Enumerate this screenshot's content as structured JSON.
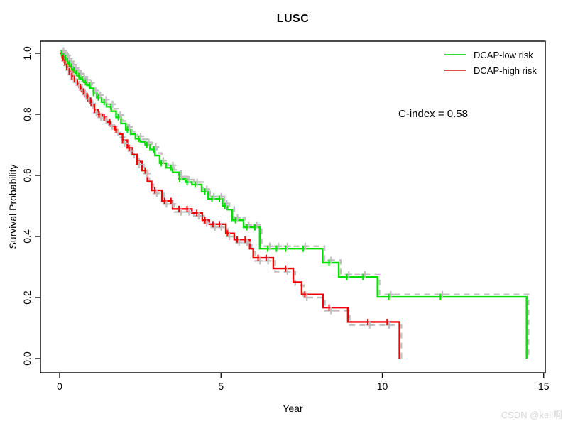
{
  "title": "LUSC",
  "annotation_text": "C-index = 0.58",
  "watermark_text": "CSDN @keil啊",
  "chart_data": {
    "type": "line",
    "subtype": "kaplan-meier-step",
    "title": "LUSC",
    "xlabel": "Year",
    "ylabel": "Survival Probability",
    "xlim": [
      0,
      15
    ],
    "ylim": [
      0.0,
      1.0
    ],
    "grid": false,
    "x_ticks": [
      {
        "v": 0,
        "label": "0"
      },
      {
        "v": 5,
        "label": "5"
      },
      {
        "v": 10,
        "label": "10"
      },
      {
        "v": 15,
        "label": "15"
      }
    ],
    "y_ticks": [
      {
        "v": 0.0,
        "label": "0.0"
      },
      {
        "v": 0.2,
        "label": "0.2"
      },
      {
        "v": 0.4,
        "label": "0.4"
      },
      {
        "v": 0.6,
        "label": "0.6"
      },
      {
        "v": 0.8,
        "label": "0.8"
      },
      {
        "v": 1.0,
        "label": "1.0"
      }
    ],
    "legend": {
      "position": "top-right",
      "frame": false,
      "entries": [
        {
          "label": "DCAP-low risk",
          "color": "#33dd33"
        },
        {
          "label": "DCAP-high risk",
          "color": "#e05050"
        }
      ]
    },
    "annotation": {
      "text": "C-index = 0.58",
      "x": 11.5,
      "y": 0.8
    },
    "colors": {
      "low_risk": "#00e000",
      "high_risk": "#f00000",
      "reference_dashed": "#bfbfbf"
    },
    "series": [
      {
        "name": "DCAP-low risk",
        "color": "#00e000",
        "style": "solid",
        "start": [
          0,
          1.0
        ],
        "steps": [
          [
            0.08,
            0.99
          ],
          [
            0.15,
            0.985
          ],
          [
            0.2,
            0.975
          ],
          [
            0.28,
            0.965
          ],
          [
            0.35,
            0.955
          ],
          [
            0.42,
            0.945
          ],
          [
            0.5,
            0.935
          ],
          [
            0.58,
            0.925
          ],
          [
            0.65,
            0.915
          ],
          [
            0.75,
            0.905
          ],
          [
            0.85,
            0.895
          ],
          [
            0.95,
            0.885
          ],
          [
            1.05,
            0.87
          ],
          [
            1.15,
            0.855
          ],
          [
            1.3,
            0.84
          ],
          [
            1.45,
            0.825
          ],
          [
            1.6,
            0.81
          ],
          [
            1.75,
            0.79
          ],
          [
            1.9,
            0.77
          ],
          [
            2.05,
            0.75
          ],
          [
            2.2,
            0.735
          ],
          [
            2.35,
            0.72
          ],
          [
            2.5,
            0.71
          ],
          [
            2.65,
            0.7
          ],
          [
            2.8,
            0.685
          ],
          [
            2.95,
            0.665
          ],
          [
            3.1,
            0.64
          ],
          [
            3.3,
            0.625
          ],
          [
            3.5,
            0.61
          ],
          [
            3.7,
            0.588
          ],
          [
            3.9,
            0.578
          ],
          [
            4.1,
            0.57
          ],
          [
            4.4,
            0.547
          ],
          [
            4.6,
            0.523
          ],
          [
            5.05,
            0.5
          ],
          [
            5.2,
            0.488
          ],
          [
            5.35,
            0.453
          ],
          [
            5.7,
            0.43
          ],
          [
            6.2,
            0.36
          ],
          [
            8.15,
            0.314
          ],
          [
            8.65,
            0.267
          ],
          [
            9.85,
            0.202
          ],
          [
            14.47,
            0.0
          ]
        ],
        "censor_times": [
          0.06,
          0.12,
          0.18,
          0.24,
          0.3,
          0.37,
          0.44,
          0.52,
          0.6,
          0.7,
          0.8,
          0.92,
          1.05,
          1.2,
          1.38,
          1.58,
          1.82,
          2.1,
          2.45,
          2.7,
          2.92,
          3.15,
          3.45,
          3.72,
          3.95,
          4.2,
          4.5,
          4.72,
          4.95,
          5.12,
          5.45,
          5.8,
          6.05,
          6.45,
          6.72,
          7.0,
          7.55,
          8.35,
          8.9,
          9.4,
          10.2,
          11.8
        ]
      },
      {
        "name": "DCAP-high risk",
        "color": "#f00000",
        "style": "solid",
        "start": [
          0,
          1.0
        ],
        "steps": [
          [
            0.08,
            0.985
          ],
          [
            0.15,
            0.97
          ],
          [
            0.22,
            0.955
          ],
          [
            0.3,
            0.94
          ],
          [
            0.38,
            0.925
          ],
          [
            0.45,
            0.915
          ],
          [
            0.52,
            0.905
          ],
          [
            0.6,
            0.89
          ],
          [
            0.68,
            0.875
          ],
          [
            0.78,
            0.86
          ],
          [
            0.88,
            0.845
          ],
          [
            0.98,
            0.83
          ],
          [
            1.08,
            0.815
          ],
          [
            1.2,
            0.8
          ],
          [
            1.32,
            0.79
          ],
          [
            1.45,
            0.775
          ],
          [
            1.58,
            0.762
          ],
          [
            1.7,
            0.75
          ],
          [
            1.82,
            0.735
          ],
          [
            1.95,
            0.715
          ],
          [
            2.1,
            0.69
          ],
          [
            2.25,
            0.668
          ],
          [
            2.4,
            0.645
          ],
          [
            2.55,
            0.616
          ],
          [
            2.72,
            0.58
          ],
          [
            2.85,
            0.551
          ],
          [
            3.17,
            0.516
          ],
          [
            3.5,
            0.49
          ],
          [
            4.1,
            0.477
          ],
          [
            4.42,
            0.453
          ],
          [
            4.64,
            0.44
          ],
          [
            5.15,
            0.41
          ],
          [
            5.41,
            0.39
          ],
          [
            5.89,
            0.36
          ],
          [
            6.0,
            0.33
          ],
          [
            6.62,
            0.295
          ],
          [
            7.24,
            0.25
          ],
          [
            7.5,
            0.21
          ],
          [
            8.16,
            0.167
          ],
          [
            8.93,
            0.12
          ],
          [
            10.53,
            0.0
          ]
        ],
        "censor_times": [
          0.1,
          0.16,
          0.22,
          0.3,
          0.38,
          0.46,
          0.55,
          0.64,
          0.74,
          0.85,
          0.96,
          1.08,
          1.22,
          1.38,
          1.55,
          1.75,
          1.95,
          2.15,
          2.4,
          2.65,
          2.95,
          3.25,
          3.45,
          3.7,
          3.95,
          4.25,
          4.5,
          4.75,
          4.95,
          5.2,
          5.5,
          5.75,
          6.15,
          6.4,
          7.0,
          7.6,
          8.35,
          9.55,
          10.15
        ]
      },
      {
        "name": "low-risk reference curve (gray dashed)",
        "color": "#bfbfbf",
        "style": "dashed",
        "follows": 0,
        "offset": [
          0.06,
          0.008
        ]
      },
      {
        "name": "high-risk reference curve (gray dashed)",
        "color": "#bfbfbf",
        "style": "dashed",
        "follows": 1,
        "offset": [
          0.06,
          -0.01
        ]
      }
    ]
  }
}
